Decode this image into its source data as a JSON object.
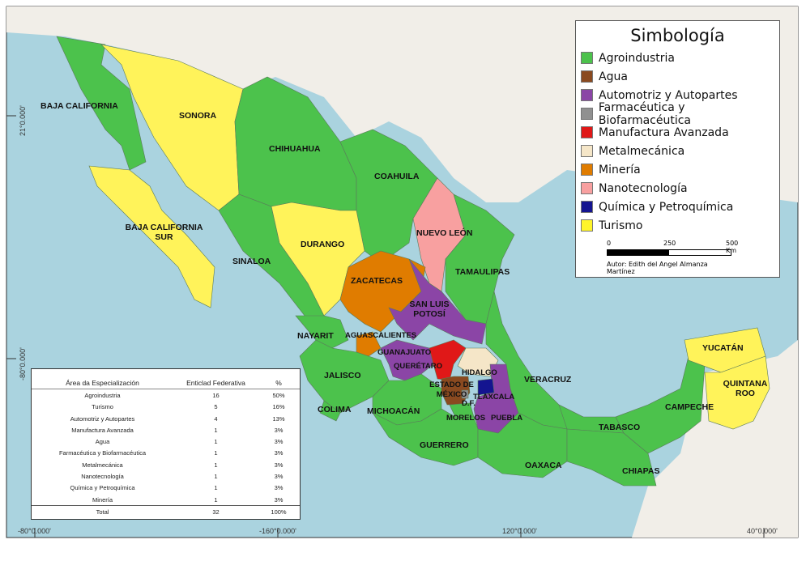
{
  "legend": {
    "title": "Simbología",
    "items": [
      {
        "label": "Agroindustria",
        "color": "#4cc24c"
      },
      {
        "label": "Agua",
        "color": "#8a4a20"
      },
      {
        "label": "Automotriz y Autopartes",
        "color": "#8b45a6"
      },
      {
        "label": "Farmacéutica y Biofarmacéutica",
        "color": "#909090"
      },
      {
        "label": "Manufactura Avanzada",
        "color": "#e01818"
      },
      {
        "label": "Metalmecánica",
        "color": "#f5e6c8"
      },
      {
        "label": "Minería",
        "color": "#e07c00"
      },
      {
        "label": "Nanotecnología",
        "color": "#f8a0a0"
      },
      {
        "label": "Química y Petroquímica",
        "color": "#141490"
      },
      {
        "label": "Turismo",
        "color": "#fff52a"
      }
    ]
  },
  "scale_bar": {
    "ticks": [
      "0",
      "250",
      "500 Km"
    ]
  },
  "author": "Autor: Edith del Angel Almanza Martínez",
  "states": {
    "baja_california": "BAJA CALIFORNIA",
    "sonora": "SONORA",
    "chihuahua": "CHIHUAHUA",
    "coahuila": "COAHUILA",
    "bcs": "BAJA CALIFORNIA SUR",
    "durango": "DURANGO",
    "nuevo_leon": "NUEVO LEÓN",
    "sinaloa": "SINALOA",
    "tamaulipas": "TAMAULIPAS",
    "zacatecas": "ZACATECAS",
    "slp": "SAN LUIS POTOSÍ",
    "nayarit": "NAYARIT",
    "aguascalientes": "AGUASCALIENTES",
    "guanajuato": "GUANAJUATO",
    "queretaro": "QUERÉTARO",
    "hidalgo": "HIDALGO",
    "jalisco": "JALISCO",
    "edomex": "ESTADO DE MÉXICO",
    "df": "D.F.",
    "tlaxcala": "TLAXCALA",
    "veracruz": "VERACRUZ",
    "colima": "COLIMA",
    "michoacan": "MICHOACÁN",
    "morelos": "MORELOS",
    "puebla": "PUEBLA",
    "tabasco": "TABASCO",
    "campeche": "CAMPECHE",
    "yucatan": "YUCATÁN",
    "quintana_roo": "QUINTANA ROO",
    "guerrero": "GUERRERO",
    "oaxaca": "OAXACA",
    "chiapas": "CHIAPAS"
  },
  "table": {
    "headers": [
      "Área da Especialización",
      "Enticlad Federativa",
      "%"
    ],
    "rows": [
      [
        "Agroindustria",
        "16",
        "50%"
      ],
      [
        "Turismo",
        "5",
        "16%"
      ],
      [
        "Automotriz y Autopartes",
        "4",
        "13%"
      ],
      [
        "Manufactura Avanzada",
        "1",
        "3%"
      ],
      [
        "Agua",
        "1",
        "3%"
      ],
      [
        "Farmacéutica y Biofarmacéutica",
        "1",
        "3%"
      ],
      [
        "Metalmecánica",
        "1",
        "3%"
      ],
      [
        "Nanotecnología",
        "1",
        "3%"
      ],
      [
        "Química y Petroquímica",
        "1",
        "3%"
      ],
      [
        "Minería",
        "1",
        "3%"
      ]
    ],
    "total": [
      "Total",
      "32",
      "100%"
    ]
  },
  "coords": {
    "bottom": [
      "-80°0.000'",
      "-160°0.000'",
      "120°0.000'",
      "40°0.000'"
    ],
    "left": [
      "21°0.000'",
      "-80°0.000'"
    ]
  }
}
